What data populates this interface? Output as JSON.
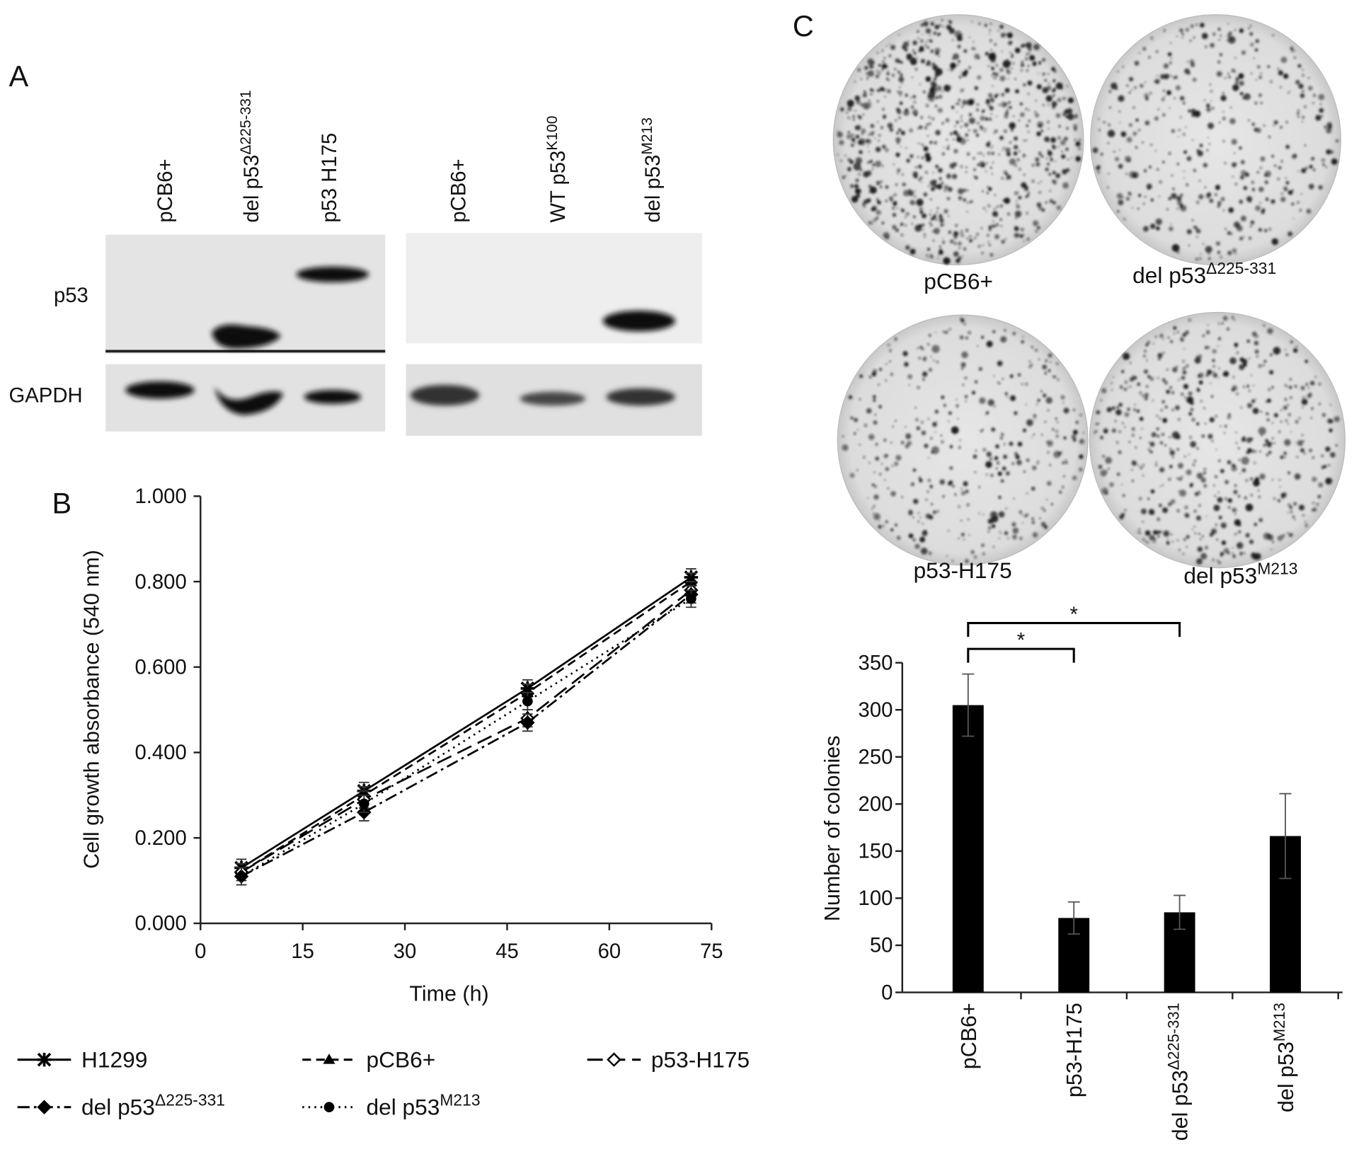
{
  "panels": {
    "a": "A",
    "b": "B",
    "c": "C"
  },
  "blot": {
    "lanes_left": [
      "pCB6+",
      {
        "text": "del p53",
        "sup": "Δ225-331"
      },
      "p53 H175"
    ],
    "lanes_right": [
      "pCB6+",
      {
        "text": "WT p53",
        "sup": "K100"
      },
      {
        "text": "del p53",
        "sup": "M213"
      }
    ],
    "rows": [
      "p53",
      "GAPDH"
    ]
  },
  "dishes": [
    "pCB6+",
    {
      "text": "del p53",
      "sup": "Δ225-331"
    },
    "p53-H175",
    {
      "text": "del p53",
      "sup": "M213"
    }
  ],
  "chart_data": [
    {
      "type": "line",
      "xlabel": "Time (h)",
      "ylabel": "Cell growth absorbance (540 nm)",
      "x": [
        6,
        24,
        48,
        72
      ],
      "xlim": [
        0,
        75
      ],
      "xticks": [
        0,
        15,
        30,
        45,
        60,
        75
      ],
      "ylim": [
        0,
        1
      ],
      "yticks": [
        {
          "value": 0,
          "label": "0.000"
        },
        {
          "value": 0.2,
          "label": "0.200"
        },
        {
          "value": 0.4,
          "label": "0.400"
        },
        {
          "value": 0.6,
          "label": "0.600"
        },
        {
          "value": 0.8,
          "label": "0.800"
        },
        {
          "value": 1,
          "label": "1.000"
        }
      ],
      "legend": "bottom",
      "series": [
        {
          "name": "H1299",
          "color": "#000000",
          "dash": "solid",
          "marker": "star",
          "values": [
            0.13,
            0.31,
            0.55,
            0.81
          ],
          "errors": [
            0.02,
            0.02,
            0.02,
            0.02
          ]
        },
        {
          "name": "pCB6+",
          "color": "#000000",
          "dash": "dashed",
          "marker": "triangle",
          "values": [
            0.12,
            0.3,
            0.54,
            0.8
          ],
          "errors": [
            0.02,
            0.02,
            0.02,
            0.02
          ]
        },
        {
          "name": "p53-H175",
          "color": "#000000",
          "dash": "longdash",
          "marker": "open-diamond",
          "values": [
            0.12,
            0.29,
            0.48,
            0.78
          ],
          "errors": [
            0.02,
            0.02,
            0.02,
            0.02
          ]
        },
        {
          "name": {
            "text": "del p53",
            "sup": "Δ225-331"
          },
          "color": "#000000",
          "dash": "dashdot",
          "marker": "diamond",
          "values": [
            0.11,
            0.26,
            0.47,
            0.77
          ],
          "errors": [
            0.02,
            0.02,
            0.02,
            0.02
          ]
        },
        {
          "name": {
            "text": "del p53",
            "sup": "M213"
          },
          "color": "#000000",
          "dash": "dotted",
          "marker": "circle",
          "values": [
            0.11,
            0.28,
            0.52,
            0.76
          ],
          "errors": [
            0.02,
            0.02,
            0.02,
            0.02
          ]
        }
      ]
    },
    {
      "type": "bar",
      "ylabel": "Number of colonies",
      "categories": [
        "pCB6+",
        "p53-H175",
        {
          "text": "del p53",
          "sup": "Δ225-331"
        },
        {
          "text": "del p53",
          "sup": "M213"
        }
      ],
      "values": [
        305,
        79,
        85,
        166
      ],
      "errors": [
        33,
        17,
        18,
        45
      ],
      "color": "#000000",
      "ylim": [
        0,
        350
      ],
      "yticks": [
        0,
        50,
        100,
        150,
        200,
        250,
        300,
        350
      ],
      "annotations": [
        "*",
        "*"
      ]
    }
  ]
}
